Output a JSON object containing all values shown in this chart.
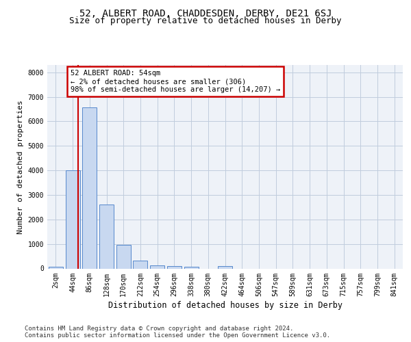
{
  "title1": "52, ALBERT ROAD, CHADDESDEN, DERBY, DE21 6SJ",
  "title2": "Size of property relative to detached houses in Derby",
  "xlabel": "Distribution of detached houses by size in Derby",
  "ylabel": "Number of detached properties",
  "categories": [
    "2sqm",
    "44sqm",
    "86sqm",
    "128sqm",
    "170sqm",
    "212sqm",
    "254sqm",
    "296sqm",
    "338sqm",
    "380sqm",
    "422sqm",
    "464sqm",
    "506sqm",
    "547sqm",
    "589sqm",
    "631sqm",
    "673sqm",
    "715sqm",
    "757sqm",
    "799sqm",
    "841sqm"
  ],
  "values": [
    70,
    4000,
    6580,
    2620,
    960,
    310,
    130,
    110,
    80,
    0,
    100,
    0,
    0,
    0,
    0,
    0,
    0,
    0,
    0,
    0,
    0
  ],
  "bar_color": "#c8d8f0",
  "bar_edge_color": "#5588cc",
  "vline_x": 1.33,
  "vline_color": "#cc0000",
  "annotation_text": "52 ALBERT ROAD: 54sqm\n← 2% of detached houses are smaller (306)\n98% of semi-detached houses are larger (14,207) →",
  "annotation_box_color": "#ffffff",
  "annotation_box_edge": "#cc0000",
  "ylim": [
    0,
    8300
  ],
  "yticks": [
    0,
    1000,
    2000,
    3000,
    4000,
    5000,
    6000,
    7000,
    8000
  ],
  "grid_color": "#c0ccdd",
  "bg_color": "#eef2f8",
  "footer1": "Contains HM Land Registry data © Crown copyright and database right 2024.",
  "footer2": "Contains public sector information licensed under the Open Government Licence v3.0.",
  "title1_fontsize": 10,
  "title2_fontsize": 9,
  "tick_fontsize": 7,
  "ylabel_fontsize": 8,
  "xlabel_fontsize": 8.5,
  "footer_fontsize": 6.5,
  "annot_fontsize": 7.5
}
